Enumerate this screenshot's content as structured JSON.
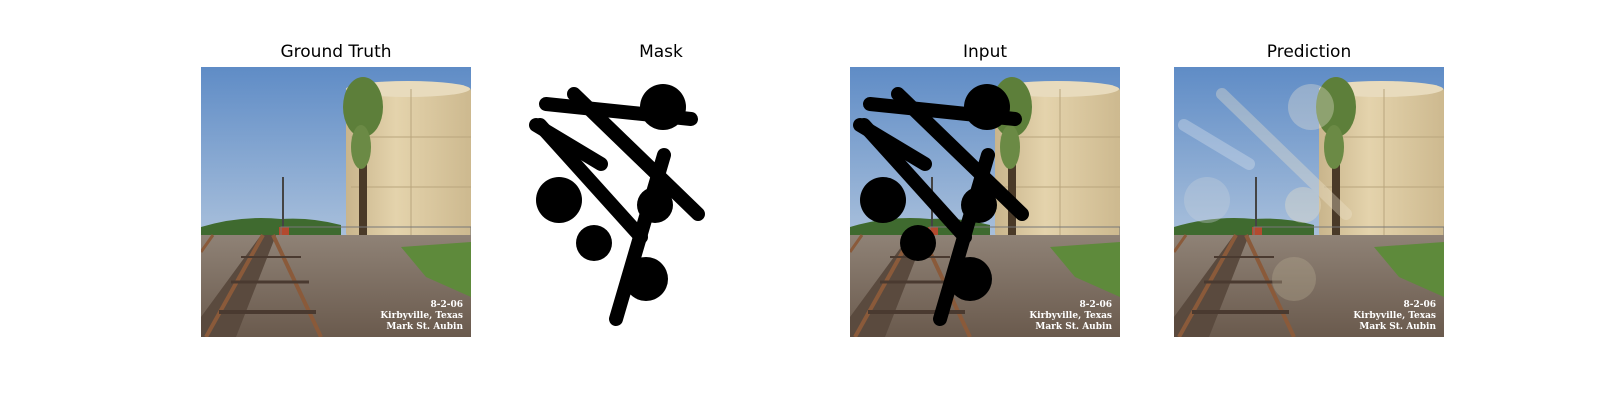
{
  "figure": {
    "panels": [
      {
        "title": "Ground Truth",
        "image_kind": "photo"
      },
      {
        "title": "Mask",
        "image_kind": "mask"
      },
      {
        "title": "Input",
        "image_kind": "photo-with-mask"
      },
      {
        "title": "Prediction",
        "image_kind": "photo-inpainted"
      }
    ]
  },
  "photo": {
    "caption_date": "8-2-06",
    "caption_place": "Kirbyville, Texas",
    "caption_author": "Mark St. Aubin"
  },
  "colors": {
    "sky_top": "#6f96c8",
    "sky_bottom": "#d7e1ea",
    "tank": "#d9c59c",
    "ground": "#7c6a5a",
    "mask": "#000000"
  }
}
